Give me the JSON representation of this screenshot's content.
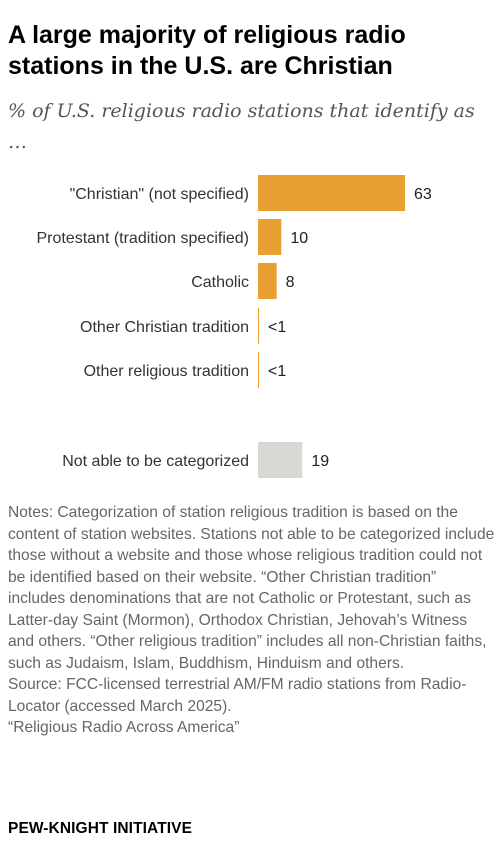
{
  "chart_data": {
    "type": "bar",
    "title": "A large majority of religious radio stations in the U.S. are Christian",
    "subtitle": "% of U.S. religious radio stations that identify as …",
    "categories": [
      "\"Christian\" (not specified)",
      "Protestant (tradition specified)",
      "Catholic",
      "Other Christian tradition",
      "Other religious tradition",
      "Not able to be categorized"
    ],
    "values": [
      63,
      10,
      8,
      0.4,
      0.4,
      19
    ],
    "value_labels": [
      "63",
      "10",
      "8",
      "<1",
      "<1",
      "19"
    ],
    "colors": [
      "#E8A033",
      "#E8A033",
      "#E8A033",
      "#E8A033",
      "#E8A033",
      "#D8D8D4"
    ],
    "xlim": [
      0,
      63
    ],
    "grid": false,
    "orientation": "horizontal"
  },
  "notes": {
    "text": "Notes: Categorization of station religious tradition is based on the content of station websites. Stations not able to be categorized include those without a website and those whose religious tradition could not be identified based on their website. “Other Christian tradition” includes denominations that are not Catholic or Protestant, such as Latter-day Saint (Mormon), Orthodox Christian, Jehovah’s Witness and others. “Other religious tradition” includes all non-Christian faiths, such as Judaism, Islam, Buddhism, Hinduism and others.",
    "source": "Source: FCC-licensed terrestrial AM/FM radio stations from Radio-Locator (accessed March 2025).",
    "report": "“Religious Radio Across America”"
  },
  "brand": "PEW-KNIGHT INITIATIVE"
}
